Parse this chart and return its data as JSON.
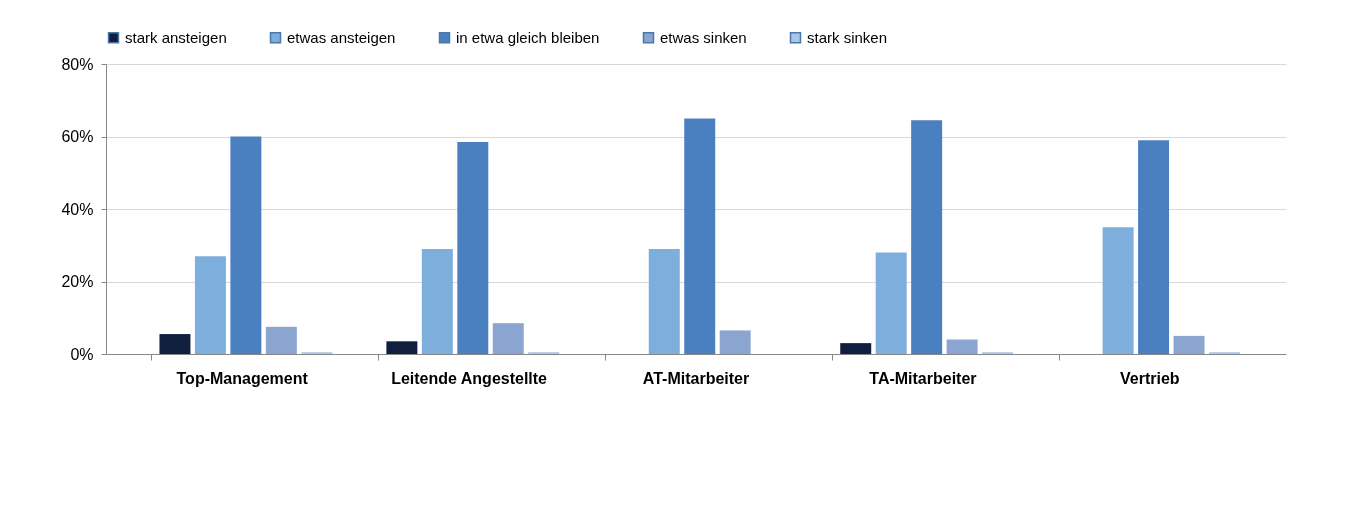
{
  "chart_data": {
    "type": "bar",
    "categories": [
      "Top-Management",
      "Leitende Angestellte",
      "AT-Mitarbeiter",
      "TA-Mitarbeiter",
      "Vertrieb"
    ],
    "series": [
      {
        "name": "stark ansteigen",
        "color": "#0f1f3d",
        "values": [
          5.5,
          3.5,
          0,
          3,
          0
        ]
      },
      {
        "name": "etwas ansteigen",
        "color": "#7eaedc",
        "values": [
          27,
          29,
          29,
          28,
          35
        ]
      },
      {
        "name": "in etwa gleich bleiben",
        "color": "#4a80bf",
        "values": [
          60,
          58.5,
          65,
          64.5,
          59
        ]
      },
      {
        "name": "etwas sinken",
        "color": "#8aa5cf",
        "values": [
          7.5,
          8.5,
          6.5,
          4,
          5
        ]
      },
      {
        "name": "stark sinken",
        "color": "#a9c7e8",
        "values": [
          0.5,
          0.5,
          0,
          0.5,
          0.5
        ]
      }
    ],
    "ylim": [
      0,
      80
    ],
    "yticks": [
      {
        "value": 0,
        "label": "0%"
      },
      {
        "value": 20,
        "label": "20%"
      },
      {
        "value": 40,
        "label": "40%"
      },
      {
        "value": 60,
        "label": "60%"
      },
      {
        "value": 80,
        "label": "80%"
      }
    ],
    "grid": "y",
    "legend": "top"
  }
}
